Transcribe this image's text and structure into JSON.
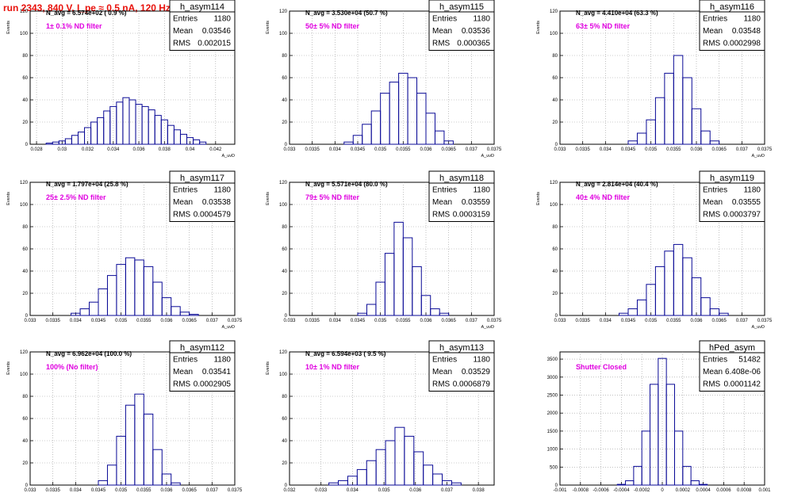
{
  "page_title": "run 2343,   840 V, I_pe ≈ 0.5 nA, 120 Hz",
  "colors": {
    "title": "#e8120c",
    "annotation": "#e000e0",
    "histogram": "#0a0a96",
    "grid": "#9a9a9a"
  },
  "chart_data": [
    {
      "type": "bar",
      "name": "h_asym114",
      "stats": [
        [
          "Entries",
          "1180"
        ],
        [
          "Mean",
          "0.03546"
        ],
        [
          "RMS",
          "0.002015"
        ]
      ],
      "navg": "N_avg = 6.574e+02 ( 0.9 %)",
      "filter": "1± 0.1% ND filter",
      "xlabel": "A_uvD",
      "ylabel": "Events",
      "xlim": [
        0.0275,
        0.0435
      ],
      "ylim": [
        0,
        120
      ],
      "xticks": [
        "0.028",
        "0.03",
        "0.032",
        "0.034",
        "0.036",
        "0.038",
        "0.04",
        "0.042"
      ],
      "yticks": [
        "0",
        "20",
        "40",
        "60",
        "80",
        "100",
        "120"
      ],
      "x": [
        0.029,
        0.0295,
        0.03,
        0.0305,
        0.031,
        0.0315,
        0.032,
        0.0325,
        0.033,
        0.0335,
        0.034,
        0.0345,
        0.035,
        0.0355,
        0.036,
        0.0365,
        0.037,
        0.0375,
        0.038,
        0.0385,
        0.039,
        0.0395,
        0.04,
        0.0405,
        0.041
      ],
      "values": [
        1,
        2,
        3,
        5,
        8,
        11,
        15,
        20,
        24,
        30,
        34,
        38,
        42,
        40,
        36,
        34,
        31,
        26,
        22,
        17,
        13,
        9,
        6,
        4,
        2
      ]
    },
    {
      "type": "bar",
      "name": "h_asym115",
      "stats": [
        [
          "Entries",
          "1180"
        ],
        [
          "Mean",
          "0.03536"
        ],
        [
          "RMS",
          "0.000365"
        ]
      ],
      "navg": "N_avg = 3.530e+04 (50.7 %)",
      "filter": "50± 5% ND filter",
      "xlabel": "A_uvD",
      "ylabel": "Events",
      "xlim": [
        0.033,
        0.0375
      ],
      "ylim": [
        0,
        120
      ],
      "xticks": [
        "0.033",
        "0.0335",
        "0.034",
        "0.0345",
        "0.035",
        "0.0355",
        "0.036",
        "0.0365",
        "0.037",
        "0.0375"
      ],
      "yticks": [
        "0",
        "20",
        "40",
        "60",
        "80",
        "100",
        "120"
      ],
      "x": [
        0.0343,
        0.0345,
        0.0347,
        0.0349,
        0.0351,
        0.0353,
        0.0355,
        0.0357,
        0.0359,
        0.0361,
        0.0363,
        0.0365
      ],
      "values": [
        2,
        8,
        18,
        30,
        46,
        56,
        64,
        60,
        46,
        28,
        12,
        3
      ]
    },
    {
      "type": "bar",
      "name": "h_asym116",
      "stats": [
        [
          "Entries",
          "1180"
        ],
        [
          "Mean",
          "0.03548"
        ],
        [
          "RMS",
          "0.0002998"
        ]
      ],
      "navg": "N_avg = 4.410e+04 (63.3 %)",
      "filter": "63± 5% ND filter",
      "xlabel": "A_uvD",
      "ylabel": "Events",
      "xlim": [
        0.033,
        0.0375
      ],
      "ylim": [
        0,
        120
      ],
      "xticks": [
        "0.033",
        "0.0335",
        "0.034",
        "0.0345",
        "0.035",
        "0.0355",
        "0.036",
        "0.0365",
        "0.037",
        "0.0375"
      ],
      "yticks": [
        "0",
        "20",
        "40",
        "60",
        "80",
        "100",
        "120"
      ],
      "x": [
        0.0346,
        0.0348,
        0.035,
        0.0352,
        0.0354,
        0.0356,
        0.0358,
        0.036,
        0.0362,
        0.0364
      ],
      "values": [
        3,
        10,
        22,
        42,
        64,
        80,
        60,
        32,
        12,
        3
      ]
    },
    {
      "type": "bar",
      "name": "h_asym117",
      "stats": [
        [
          "Entries",
          "1180"
        ],
        [
          "Mean",
          "0.03538"
        ],
        [
          "RMS",
          "0.0004579"
        ]
      ],
      "navg": "N_avg = 1.797e+04 (25.8 %)",
      "filter": "25± 2.5% ND filter",
      "xlabel": "A_uvD",
      "ylabel": "Events",
      "xlim": [
        0.033,
        0.0375
      ],
      "ylim": [
        0,
        120
      ],
      "xticks": [
        "0.033",
        "0.0335",
        "0.034",
        "0.0345",
        "0.035",
        "0.0355",
        "0.036",
        "0.0365",
        "0.037",
        "0.0375"
      ],
      "yticks": [
        "0",
        "20",
        "40",
        "60",
        "80",
        "100",
        "120"
      ],
      "x": [
        0.034,
        0.0342,
        0.0344,
        0.0346,
        0.0348,
        0.035,
        0.0352,
        0.0354,
        0.0356,
        0.0358,
        0.036,
        0.0362,
        0.0364,
        0.0366
      ],
      "values": [
        2,
        6,
        12,
        24,
        36,
        46,
        52,
        50,
        44,
        30,
        16,
        8,
        3,
        1
      ]
    },
    {
      "type": "bar",
      "name": "h_asym118",
      "stats": [
        [
          "Entries",
          "1180"
        ],
        [
          "Mean",
          "0.03559"
        ],
        [
          "RMS",
          "0.0003159"
        ]
      ],
      "navg": "N_avg = 5.571e+04 (80.0 %)",
      "filter": "79± 5% ND filter",
      "xlabel": "A_uvD",
      "ylabel": "Events",
      "xlim": [
        0.033,
        0.0375
      ],
      "ylim": [
        0,
        120
      ],
      "xticks": [
        "0.033",
        "0.0335",
        "0.034",
        "0.0345",
        "0.035",
        "0.0355",
        "0.036",
        "0.0365",
        "0.037",
        "0.0375"
      ],
      "yticks": [
        "0",
        "20",
        "40",
        "60",
        "80",
        "100",
        "120"
      ],
      "x": [
        0.0346,
        0.0348,
        0.035,
        0.0352,
        0.0354,
        0.0356,
        0.0358,
        0.036,
        0.0362,
        0.0364
      ],
      "values": [
        2,
        10,
        30,
        56,
        84,
        70,
        44,
        18,
        6,
        2
      ]
    },
    {
      "type": "bar",
      "name": "h_asym119",
      "stats": [
        [
          "Entries",
          "1180"
        ],
        [
          "Mean",
          "0.03555"
        ],
        [
          "RMS",
          "0.0003797"
        ]
      ],
      "navg": "N_avg = 2.814e+04 (40.4 %)",
      "filter": "40± 4% ND filter",
      "xlabel": "A_uvD",
      "ylabel": "Events",
      "xlim": [
        0.033,
        0.0375
      ],
      "ylim": [
        0,
        120
      ],
      "xticks": [
        "0.033",
        "0.0335",
        "0.034",
        "0.0345",
        "0.035",
        "0.0355",
        "0.036",
        "0.0365",
        "0.037",
        "0.0375"
      ],
      "yticks": [
        "0",
        "20",
        "40",
        "60",
        "80",
        "100",
        "120"
      ],
      "x": [
        0.0344,
        0.0346,
        0.0348,
        0.035,
        0.0352,
        0.0354,
        0.0356,
        0.0358,
        0.036,
        0.0362,
        0.0364,
        0.0366
      ],
      "values": [
        2,
        6,
        14,
        28,
        44,
        58,
        64,
        52,
        34,
        16,
        6,
        2
      ]
    },
    {
      "type": "bar",
      "name": "h_asym112",
      "stats": [
        [
          "Entries",
          "1180"
        ],
        [
          "Mean",
          "0.03541"
        ],
        [
          "RMS",
          "0.0002905"
        ]
      ],
      "navg": "N_avg = 6.962e+04 (100.0 %)",
      "filter": "100% (No filter)",
      "xlabel": "A_uvD",
      "ylabel": "Events",
      "xlim": [
        0.033,
        0.0375
      ],
      "ylim": [
        0,
        120
      ],
      "xticks": [
        "0.033",
        "0.0335",
        "0.034",
        "0.0345",
        "0.035",
        "0.0355",
        "0.036",
        "0.0365",
        "0.037",
        "0.0375"
      ],
      "yticks": [
        "0",
        "20",
        "40",
        "60",
        "80",
        "100",
        "120"
      ],
      "x": [
        0.0346,
        0.0348,
        0.035,
        0.0352,
        0.0354,
        0.0356,
        0.0358,
        0.036,
        0.0362
      ],
      "values": [
        4,
        18,
        44,
        72,
        82,
        64,
        32,
        10,
        2
      ]
    },
    {
      "type": "bar",
      "name": "h_asym113",
      "stats": [
        [
          "Entries",
          "1180"
        ],
        [
          "Mean",
          "0.03529"
        ],
        [
          "RMS",
          "0.0006879"
        ]
      ],
      "navg": "N_avg = 6.594e+03 ( 9.5 %)",
      "filter": "10± 1% ND filter",
      "xlabel": "A_uvD",
      "ylabel": "Events",
      "xlim": [
        0.032,
        0.0385
      ],
      "ylim": [
        0,
        120
      ],
      "xticks": [
        "0.032",
        "0.033",
        "0.034",
        "0.035",
        "0.036",
        "0.037",
        "0.038"
      ],
      "yticks": [
        "0",
        "20",
        "40",
        "60",
        "80",
        "100",
        "120"
      ],
      "x": [
        0.0334,
        0.0337,
        0.034,
        0.0343,
        0.0346,
        0.0349,
        0.0352,
        0.0355,
        0.0358,
        0.0361,
        0.0364,
        0.0367,
        0.037,
        0.0373
      ],
      "values": [
        2,
        4,
        8,
        14,
        22,
        32,
        40,
        52,
        44,
        30,
        18,
        10,
        4,
        2
      ]
    },
    {
      "type": "bar",
      "name": "hPed_asym",
      "stats": [
        [
          "Entries",
          "51482"
        ],
        [
          "Mean",
          "6.408e-06"
        ],
        [
          "RMS",
          "0.0001142"
        ]
      ],
      "navg": "",
      "filter": "Shutter Closed",
      "xlabel": "",
      "ylabel": "",
      "xlim": [
        -0.001,
        0.001
      ],
      "ylim": [
        0,
        3700
      ],
      "xticks": [
        "-0.001",
        "-0.0008",
        "-0.0006",
        "-0.0004",
        "-0.0002",
        "0",
        "0.0002",
        "0.0004",
        "0.0006",
        "0.0008",
        "0.001"
      ],
      "yticks": [
        "0",
        "500",
        "1000",
        "1500",
        "2000",
        "2500",
        "3000",
        "3500"
      ],
      "x": [
        -0.0004,
        -0.00032,
        -0.00024,
        -0.00016,
        -8e-05,
        0.0,
        8e-05,
        0.00016,
        0.00024,
        0.00032,
        0.0004
      ],
      "values": [
        20,
        120,
        520,
        1500,
        2800,
        3520,
        2800,
        1500,
        520,
        120,
        20
      ]
    }
  ]
}
